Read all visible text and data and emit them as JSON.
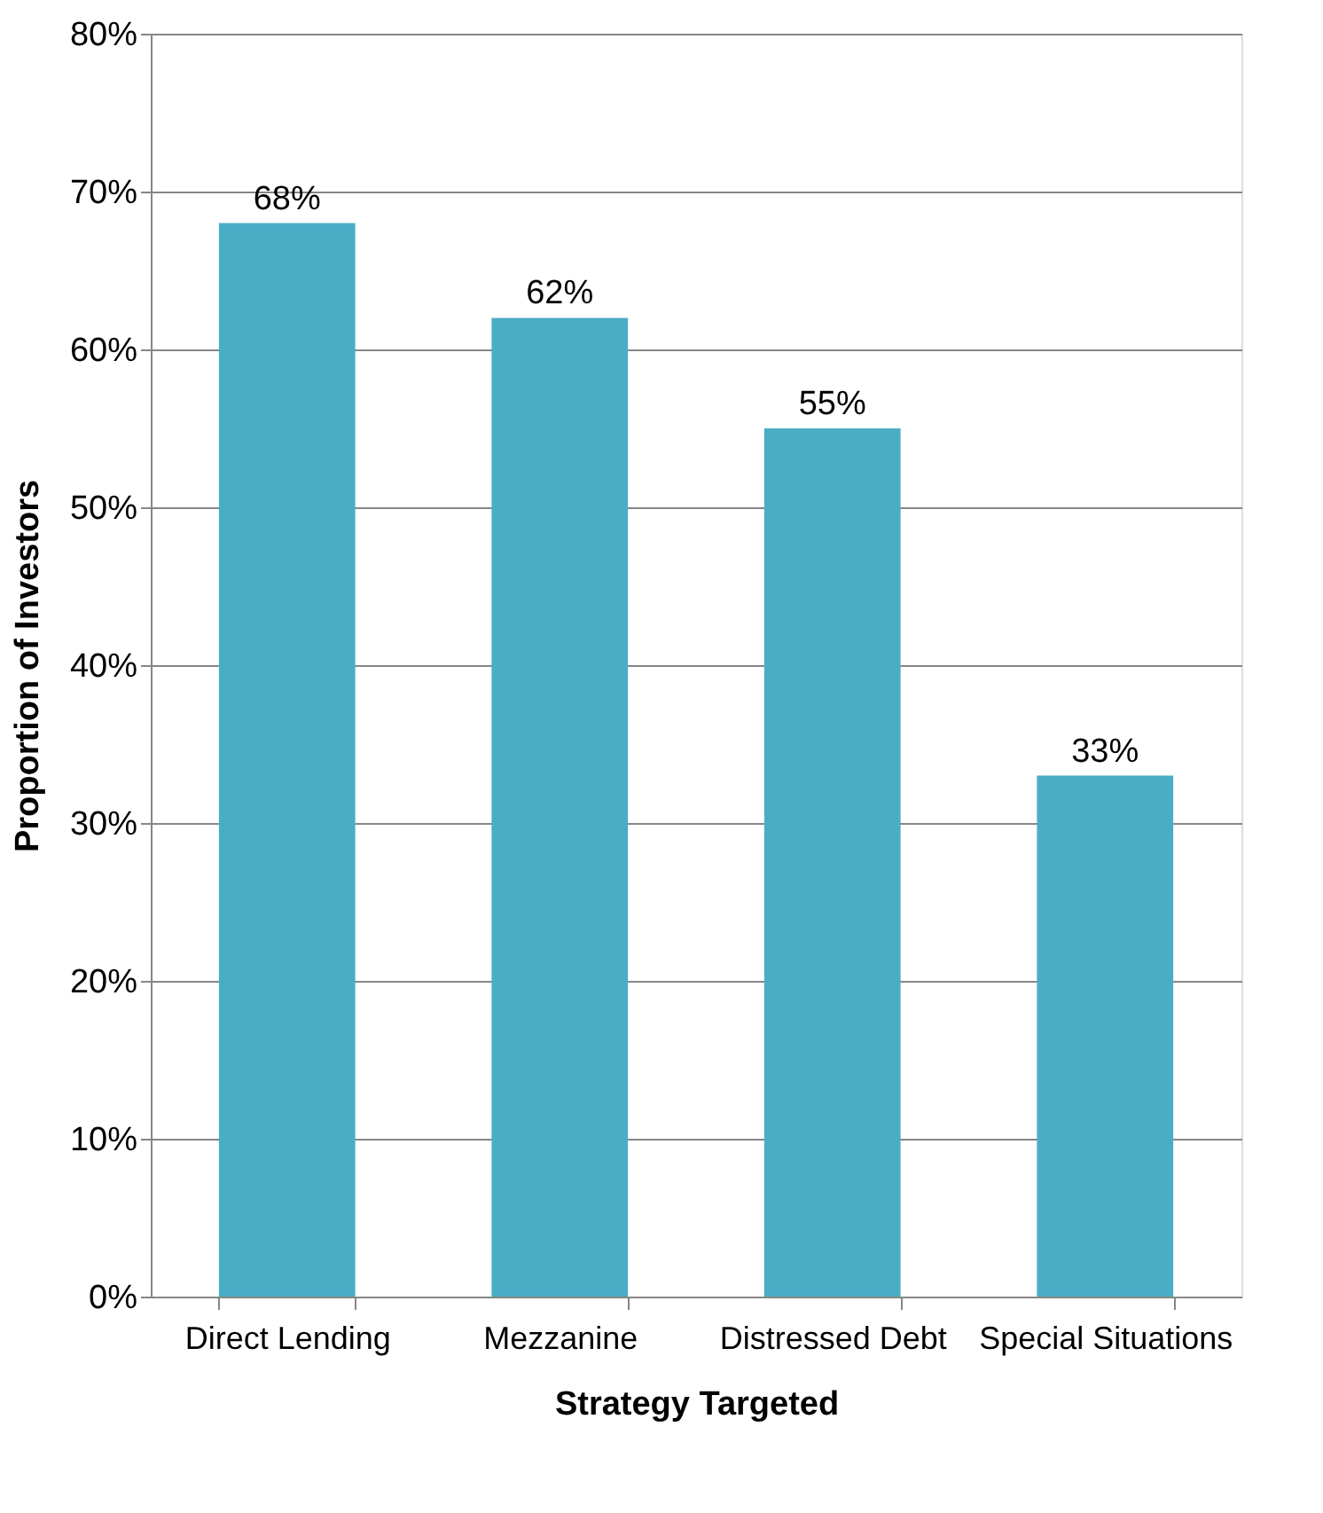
{
  "chart_data": {
    "type": "bar",
    "xlabel": "Strategy Targeted",
    "ylabel": "Proportion of Investors",
    "categories": [
      "Direct Lending",
      "Mezzanine",
      "Distressed Debt",
      "Special Situations"
    ],
    "values": [
      68,
      62,
      55,
      33
    ],
    "value_labels": [
      "68%",
      "62%",
      "55%",
      "33%"
    ],
    "color": "#4bacc6",
    "ylim": [
      0,
      80
    ],
    "yticks": [
      {
        "value": 0,
        "label": "0%"
      },
      {
        "value": 10,
        "label": "10%"
      },
      {
        "value": 20,
        "label": "20%"
      },
      {
        "value": 30,
        "label": "30%"
      },
      {
        "value": 40,
        "label": "40%"
      },
      {
        "value": 50,
        "label": "50%"
      },
      {
        "value": 60,
        "label": "60%"
      },
      {
        "value": 70,
        "label": "70%"
      },
      {
        "value": 80,
        "label": "80%"
      }
    ],
    "grid": "y"
  }
}
